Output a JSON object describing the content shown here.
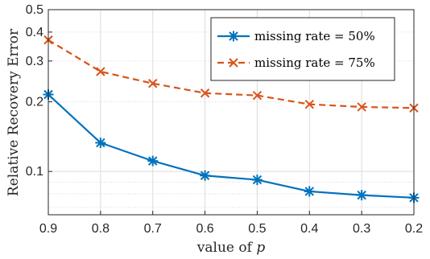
{
  "chart_data": {
    "type": "line",
    "xlabel_prefix": "value of ",
    "xlabel_var": "p",
    "ylabel": "Relative Recovery Error",
    "x": [
      0.9,
      0.8,
      0.7,
      0.6,
      0.5,
      0.4,
      0.3,
      0.2
    ],
    "x_tick_labels": [
      "0.9",
      "0.8",
      "0.7",
      "0.6",
      "0.5",
      "0.4",
      "0.3",
      "0.2"
    ],
    "x_reversed": true,
    "xlim": [
      0.9,
      0.2
    ],
    "y_scale": "log",
    "ylim": [
      0.065,
      0.5
    ],
    "y_ticks": [
      0.1,
      0.2,
      0.3,
      0.4,
      0.5
    ],
    "y_tick_labels": [
      "0.1",
      "0.2",
      "0.3",
      "0.4",
      "0.5"
    ],
    "grid": true,
    "legend_position": "top-right",
    "series": [
      {
        "name": "missing rate = 50%",
        "values": [
          0.215,
          0.133,
          0.111,
          0.096,
          0.092,
          0.082,
          0.079,
          0.077
        ],
        "color": "#0072BD",
        "marker": "asterisk",
        "line_style": "solid"
      },
      {
        "name": "missing rate = 75%",
        "values": [
          0.37,
          0.27,
          0.24,
          0.218,
          0.213,
          0.195,
          0.19,
          0.188
        ],
        "color": "#D95319",
        "marker": "x",
        "line_style": "dashed"
      }
    ]
  }
}
